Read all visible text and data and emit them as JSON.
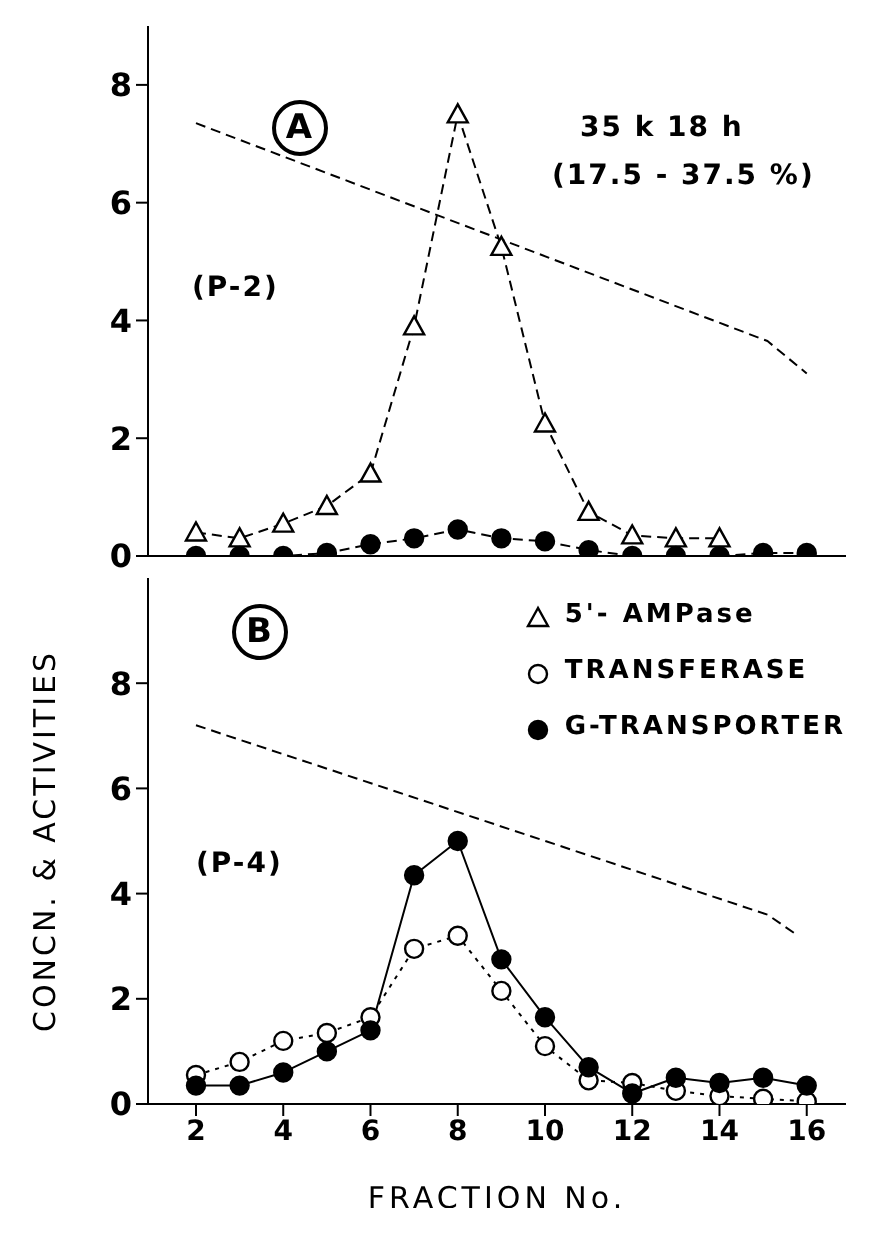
{
  "chart_data": [
    {
      "type": "line",
      "annotations": [
        "A",
        "35 k 18 h",
        "(17.5 - 37.5 %)",
        "(P-2)"
      ],
      "xlim": [
        0.9,
        16.9
      ],
      "xticks": [
        2,
        4,
        6,
        8,
        10,
        12,
        14,
        16
      ],
      "ylim": [
        0,
        9
      ],
      "yticks": [
        0,
        2,
        4,
        6,
        8
      ],
      "tick_labels": "y",
      "legend": false,
      "grid": false,
      "series": [
        {
          "color": "#ffffff",
          "marker": "triangle",
          "line_style": "dashed",
          "x": [
            2,
            3,
            4,
            5,
            6,
            7,
            8,
            9,
            10,
            11,
            12,
            13,
            14
          ],
          "values": [
            0.4,
            0.3,
            0.55,
            0.85,
            1.4,
            3.9,
            7.5,
            5.25,
            2.25,
            0.75,
            0.35,
            0.3,
            0.3
          ]
        },
        {
          "color": "#000000",
          "marker": "circle",
          "line_style": "dashed",
          "x": [
            2,
            3,
            4,
            5,
            6,
            7,
            8,
            9,
            10,
            11,
            12,
            13,
            14,
            15,
            16
          ],
          "values": [
            0,
            0,
            0,
            0.05,
            0.2,
            0.3,
            0.45,
            0.3,
            0.25,
            0.1,
            0,
            0,
            0,
            0.05,
            0.05
          ]
        },
        {
          "color": "#000000",
          "marker": "none",
          "line_style": "dashed",
          "x": [
            2,
            15.1,
            16
          ],
          "values": [
            7.35,
            3.65,
            3.1
          ]
        }
      ]
    },
    {
      "type": "line",
      "annotations": [
        "B",
        "(P-4)"
      ],
      "xlabel": "FRACTION No.",
      "ylabel": "CONCN. & ACTIVITIES",
      "xlim": [
        0.9,
        16.9
      ],
      "xticks": [
        2,
        4,
        6,
        8,
        10,
        12,
        14,
        16
      ],
      "ylim": [
        0,
        10
      ],
      "yticks": [
        0,
        2,
        4,
        6,
        8
      ],
      "legend": "top right",
      "grid": false,
      "series": [
        {
          "name": "5'- AMPase",
          "color": "#ffffff",
          "marker": "triangle"
        },
        {
          "name": "TRANSFERASE",
          "color": "#ffffff",
          "marker": "circle",
          "line_style": "dotted",
          "x": [
            2,
            3,
            4,
            5,
            6,
            7,
            8,
            9,
            10,
            11,
            12,
            13,
            14,
            15,
            16
          ],
          "values": [
            0.55,
            0.8,
            1.2,
            1.35,
            1.65,
            2.95,
            3.2,
            2.15,
            1.1,
            0.45,
            0.4,
            0.25,
            0.15,
            0.1,
            0.05
          ]
        },
        {
          "name": "G-TRANSPORTER",
          "color": "#000000",
          "marker": "circle",
          "line_style": "solid",
          "x": [
            2,
            3,
            4,
            5,
            6,
            7,
            8,
            9,
            10,
            11,
            12,
            13,
            14,
            15,
            16
          ],
          "values": [
            0.35,
            0.35,
            0.6,
            1.0,
            1.4,
            4.35,
            5.0,
            2.75,
            1.65,
            0.7,
            0.2,
            0.5,
            0.4,
            0.5,
            0.35
          ]
        },
        {
          "color": "#000000",
          "marker": "none",
          "line_style": "dashed",
          "x": [
            2,
            15.1,
            15.8
          ],
          "values": [
            7.2,
            3.6,
            3.2
          ]
        }
      ]
    }
  ]
}
